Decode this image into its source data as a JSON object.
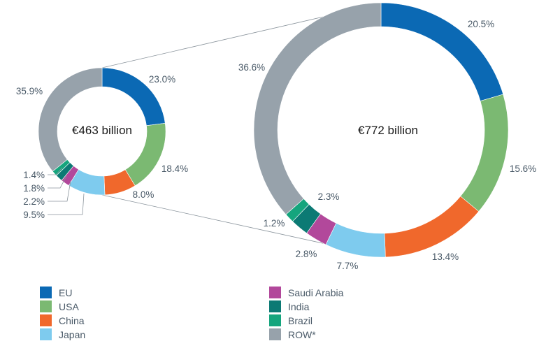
{
  "colors": {
    "EU": "#0b69b4",
    "USA": "#7bb972",
    "China": "#f0682c",
    "Japan": "#7ecbee",
    "Saudi Arabia": "#b2489b",
    "India": "#0c7a74",
    "Brazil": "#15a57d",
    "ROW*": "#97a2ab"
  },
  "chart_data": [
    {
      "type": "pie",
      "center_label": "€463 billion",
      "categories": [
        "EU",
        "USA",
        "China",
        "Japan",
        "Saudi Arabia",
        "India",
        "Brazil",
        "ROW*"
      ],
      "values": [
        23.0,
        18.4,
        8.0,
        9.5,
        2.2,
        1.8,
        1.4,
        35.9
      ],
      "labels": [
        "23.0%",
        "18.4%",
        "8.0%",
        "9.5%",
        "2.2%",
        "1.8%",
        "1.4%",
        "35.9%"
      ]
    },
    {
      "type": "pie",
      "center_label": "€772 billion",
      "categories": [
        "EU",
        "USA",
        "China",
        "Japan",
        "Saudi Arabia",
        "India",
        "Brazil",
        "ROW*"
      ],
      "values": [
        20.5,
        15.6,
        13.4,
        7.7,
        2.8,
        2.3,
        1.2,
        36.6
      ],
      "labels": [
        "20.5%",
        "15.6%",
        "13.4%",
        "7.7%",
        "2.8%",
        "2.3%",
        "1.2%",
        "36.6%"
      ]
    }
  ],
  "legend": {
    "left": [
      "EU",
      "USA",
      "China",
      "Japan"
    ],
    "right": [
      "Saudi Arabia",
      "India",
      "Brazil",
      "ROW*"
    ]
  }
}
